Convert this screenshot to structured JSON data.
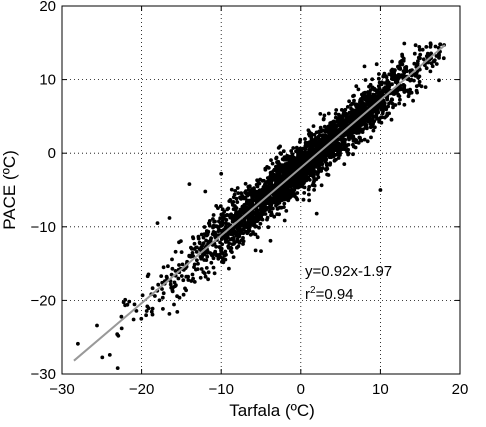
{
  "chart_data": {
    "type": "scatter",
    "xlabel": "Tarfala (ºC)",
    "ylabel": "PACE (ºC)",
    "xlim": [
      -30,
      20
    ],
    "ylim": [
      -30,
      20
    ],
    "xticks": [
      -30,
      -20,
      -10,
      0,
      10,
      20
    ],
    "yticks": [
      -30,
      -20,
      -10,
      0,
      10,
      20
    ],
    "xtick_labels": [
      "−30",
      "−20",
      "−10",
      "0",
      "10",
      "20"
    ],
    "ytick_labels": [
      "−30",
      "−20",
      "−10",
      "0",
      "10",
      "20"
    ],
    "grid": true,
    "grid_style": "dotted",
    "regression": {
      "slope": 0.92,
      "intercept": -1.97,
      "x_range": [
        -28.5,
        18.1
      ],
      "color": "#999999"
    },
    "annotations": {
      "equation": "y=0.92x-1.97",
      "r2_prefix": "r",
      "r2_sup": "2",
      "r2_value": "=0.94"
    },
    "points_summary": {
      "n_points_drawn": 3000,
      "x_range": [
        -28,
        18
      ],
      "residual_sd": 1.6,
      "note_x_density": "dense between -10 and 10, sparse at extremes"
    },
    "outliers": [
      {
        "x": -28,
        "y": -25.9
      },
      {
        "x": -24,
        "y": -27.4
      },
      {
        "x": -23,
        "y": -29.2
      },
      {
        "x": -22.5,
        "y": -23.8
      },
      {
        "x": -21,
        "y": -22.6
      },
      {
        "x": -18,
        "y": -9.5
      },
      {
        "x": -16.5,
        "y": -8.8
      },
      {
        "x": -14,
        "y": -4.2
      },
      {
        "x": -12,
        "y": -5.2
      },
      {
        "x": -10,
        "y": -2.8
      },
      {
        "x": 13,
        "y": 14.9
      },
      {
        "x": 15,
        "y": 13.4
      },
      {
        "x": 17.5,
        "y": 14.8
      },
      {
        "x": 18,
        "y": 14.7
      },
      {
        "x": 10,
        "y": -5.0
      },
      {
        "x": 8,
        "y": 11.8
      },
      {
        "x": 2,
        "y": -8.2
      },
      {
        "x": -5,
        "y": -13.3
      }
    ]
  }
}
